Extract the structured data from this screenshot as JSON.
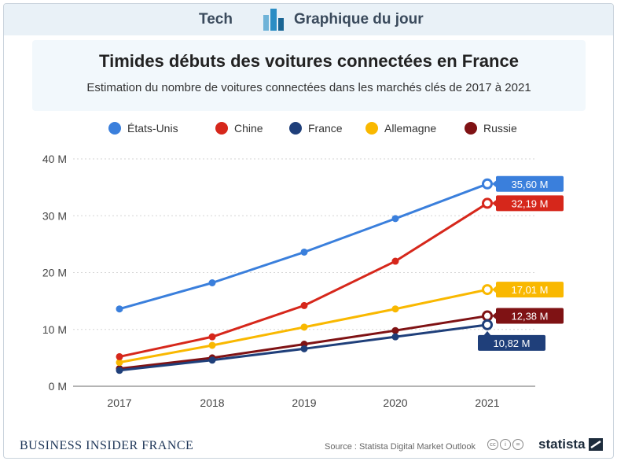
{
  "header": {
    "tech_label": "Tech",
    "section_label": "Graphique du jour",
    "icon": "bar-chart-icon"
  },
  "title": "Timides débuts des voitures connectées en France",
  "subtitle": "Estimation du nombre de voitures connectées dans les marchés clés de 2017 à 2021",
  "footer": {
    "brand": "BUSINESS INSIDER FRANCE",
    "source": "Source : Statista Digital Market Outlook",
    "cc_icons": [
      "cc-icon",
      "by-icon",
      "nd-icon"
    ],
    "cc_glyphs": [
      "cc",
      "i",
      "="
    ],
    "statista": "statista"
  },
  "chart_data": {
    "type": "line",
    "x": [
      "2017",
      "2018",
      "2019",
      "2020",
      "2021"
    ],
    "ylim": [
      0,
      40
    ],
    "y_ticks": [
      0,
      10,
      20,
      30,
      40
    ],
    "y_tick_labels": [
      "0 M",
      "10 M",
      "20 M",
      "30 M",
      "40 M"
    ],
    "grid": true,
    "legend_position": "top",
    "series": [
      {
        "name": "États-Unis",
        "color": "#3a7fdc",
        "values": [
          13.6,
          18.2,
          23.6,
          29.5,
          35.6
        ],
        "end_label": "35,60 M"
      },
      {
        "name": "Chine",
        "color": "#d6271b",
        "values": [
          5.2,
          8.7,
          14.2,
          22.0,
          32.19
        ],
        "end_label": "32,19 M"
      },
      {
        "name": "France",
        "color": "#1f3f7a",
        "values": [
          2.8,
          4.6,
          6.6,
          8.7,
          10.82
        ],
        "end_label": "10,82 M"
      },
      {
        "name": "Allemagne",
        "color": "#f9b800",
        "values": [
          4.2,
          7.2,
          10.4,
          13.6,
          17.01
        ],
        "end_label": "17,01 M"
      },
      {
        "name": "Russie",
        "color": "#7f1214",
        "values": [
          3.1,
          5.0,
          7.4,
          9.8,
          12.38
        ],
        "end_label": "12,38 M"
      }
    ]
  }
}
